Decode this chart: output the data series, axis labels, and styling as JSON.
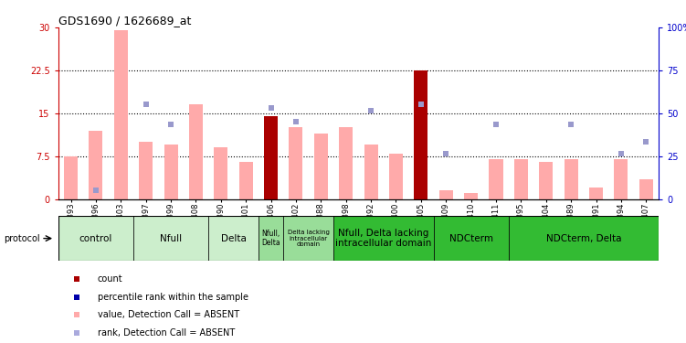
{
  "title": "GDS1690 / 1626689_at",
  "samples": [
    "GSM53393",
    "GSM53396",
    "GSM53403",
    "GSM53397",
    "GSM53399",
    "GSM53408",
    "GSM53390",
    "GSM53401",
    "GSM53406",
    "GSM53402",
    "GSM53388",
    "GSM53398",
    "GSM53392",
    "GSM53400",
    "GSM53405",
    "GSM53409",
    "GSM53410",
    "GSM53411",
    "GSM53395",
    "GSM53404",
    "GSM53389",
    "GSM53391",
    "GSM53394",
    "GSM53407"
  ],
  "bar_values": [
    7.5,
    12.0,
    29.5,
    10.0,
    9.5,
    16.5,
    9.0,
    6.5,
    14.5,
    12.5,
    11.5,
    12.5,
    9.5,
    8.0,
    22.5,
    1.5,
    1.0,
    7.0,
    7.0,
    6.5,
    7.0,
    2.0,
    7.0,
    3.5
  ],
  "bar_is_dark": [
    false,
    false,
    false,
    false,
    false,
    false,
    false,
    false,
    true,
    false,
    false,
    false,
    false,
    false,
    true,
    false,
    false,
    false,
    false,
    false,
    false,
    false,
    false,
    false
  ],
  "rank_values": [
    null,
    1.5,
    null,
    16.5,
    13.0,
    null,
    null,
    null,
    16.0,
    13.5,
    null,
    null,
    15.5,
    null,
    16.5,
    8.0,
    null,
    13.0,
    null,
    null,
    13.0,
    null,
    8.0,
    10.0
  ],
  "ylim_left": [
    0,
    30
  ],
  "ylim_right": [
    0,
    100
  ],
  "yticks_left": [
    0,
    7.5,
    15,
    22.5,
    30
  ],
  "yticks_right": [
    0,
    25,
    50,
    75,
    100
  ],
  "ytick_labels_left": [
    "0",
    "7.5",
    "15",
    "22.5",
    "30"
  ],
  "ytick_labels_right": [
    "0",
    "25",
    "50",
    "75",
    "100%"
  ],
  "groups": [
    {
      "label": "control",
      "start": 0,
      "end": 2,
      "color": "#cceecc"
    },
    {
      "label": "Nfull",
      "start": 3,
      "end": 5,
      "color": "#cceecc"
    },
    {
      "label": "Delta",
      "start": 6,
      "end": 8,
      "color": "#cceecc"
    },
    {
      "label": "Nfull,\nDelta",
      "start": 8,
      "end": 9,
      "color": "#99dd99"
    },
    {
      "label": "Delta lacking\nintracellular\ndomain",
      "start": 9,
      "end": 11,
      "color": "#99dd99"
    },
    {
      "label": "Nfull, Delta lacking\nintracellular domain",
      "start": 11,
      "end": 15,
      "color": "#33bb33"
    },
    {
      "label": "NDCterm",
      "start": 16,
      "end": 17,
      "color": "#33bb33"
    },
    {
      "label": "NDCterm, Delta",
      "start": 18,
      "end": 23,
      "color": "#33bb33"
    }
  ],
  "bar_color_light": "#ffaaaa",
  "bar_color_dark": "#aa0000",
  "rank_color": "#9999cc",
  "bg_color": "#ffffff",
  "left_axis_color": "#cc0000",
  "right_axis_color": "#0000cc",
  "legend_items": [
    {
      "color": "#aa0000",
      "label": "count"
    },
    {
      "color": "#0000aa",
      "label": "percentile rank within the sample"
    },
    {
      "color": "#ffaaaa",
      "label": "value, Detection Call = ABSENT"
    },
    {
      "color": "#aaaadd",
      "label": "rank, Detection Call = ABSENT"
    }
  ]
}
